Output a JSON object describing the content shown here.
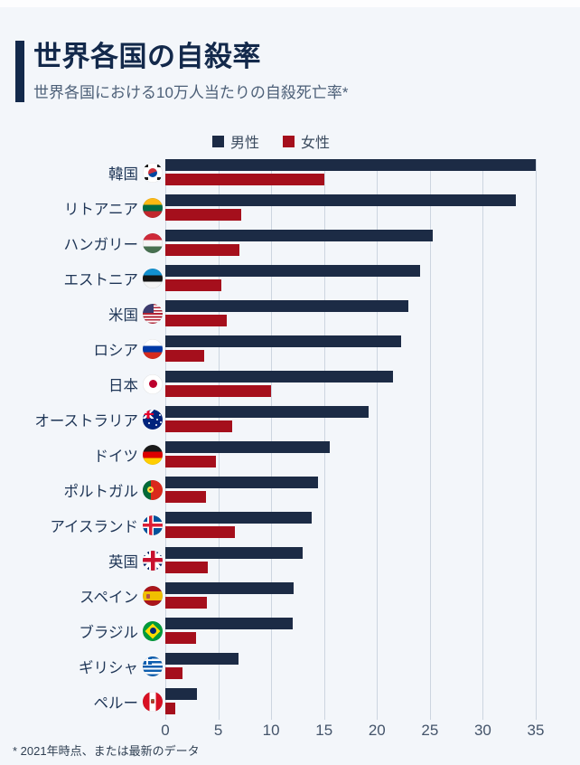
{
  "header": {
    "title": "世界各国の自殺率",
    "subtitle": "世界各国における10万人当たりの自殺死亡率*"
  },
  "legend": {
    "male_label": "男性",
    "female_label": "女性"
  },
  "footnote": "* 2021年時点、または最新のデータ",
  "colors": {
    "male": "#1c2b45",
    "female": "#a50f1c",
    "background": "#f3f6fa",
    "accent": "#13294b",
    "gridline": "#ccd5e0"
  },
  "chart_data": {
    "type": "bar",
    "orientation": "horizontal",
    "title": "世界各国の自殺率",
    "subtitle": "世界各国における10万人当たりの自殺死亡率*",
    "xlabel": "",
    "ylabel": "",
    "xlim": [
      0,
      35
    ],
    "x_ticks": [
      0,
      5,
      10,
      15,
      20,
      25,
      30,
      35
    ],
    "grid": true,
    "legend_position": "top-center",
    "categories": [
      "韓国",
      "リトアニア",
      "ハンガリー",
      "エストニア",
      "米国",
      "ロシア",
      "日本",
      "オーストラリア",
      "ドイツ",
      "ポルトガル",
      "アイスランド",
      "英国",
      "スペイン",
      "ブラジル",
      "ギリシャ",
      "ペルー"
    ],
    "flag_icons": [
      "kr",
      "lt",
      "hu",
      "ee",
      "us",
      "ru",
      "jp",
      "au",
      "de",
      "pt",
      "is",
      "gb",
      "es",
      "br",
      "gr",
      "pe"
    ],
    "series": [
      {
        "name": "男性",
        "color": "#1c2b45",
        "values": [
          35.0,
          33.1,
          25.3,
          24.1,
          23.0,
          22.3,
          21.5,
          19.2,
          15.5,
          14.4,
          13.8,
          13.0,
          12.1,
          12.0,
          6.9,
          3.0
        ]
      },
      {
        "name": "女性",
        "color": "#a50f1c",
        "values": [
          15.0,
          7.2,
          7.0,
          5.3,
          5.8,
          3.7,
          10.0,
          6.3,
          4.8,
          3.8,
          6.6,
          4.0,
          3.9,
          2.9,
          1.6,
          0.9
        ]
      }
    ]
  }
}
